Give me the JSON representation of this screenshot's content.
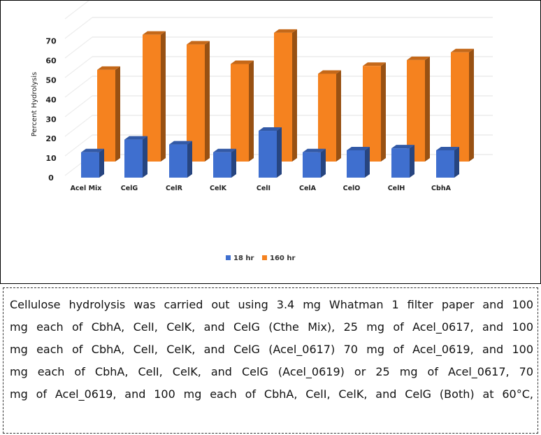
{
  "chart_data": {
    "type": "bar",
    "style": "3d-clustered",
    "ylabel": "Percent Hydrolysis",
    "ylim": [
      0,
      70
    ],
    "yticks": [
      0,
      10,
      20,
      30,
      40,
      50,
      60,
      70
    ],
    "grid": true,
    "legend_position": "bottom",
    "categories": [
      "Acel Mix",
      "CelG",
      "CelR",
      "CelK",
      "CelI",
      "CelA",
      "CelO",
      "CelH",
      "CbhA"
    ],
    "series": [
      {
        "name": "18 hr",
        "color": "#3f6fcf",
        "values": [
          13,
          19.5,
          17,
          13,
          24,
          13,
          14,
          15,
          14
        ]
      },
      {
        "name": "160 hr",
        "color": "#f5821f",
        "values": [
          47,
          65,
          60,
          50,
          66,
          45,
          49,
          52,
          56
        ]
      }
    ]
  },
  "caption": {
    "lines": [
      "Cellulose hydrolysis was carried out using 3.4 mg Whatman 1 filter paper and 100",
      "mg each of CbhA, CelI, CelK, and CelG (Cthe Mix), 25 mg of Acel_0617, and 100",
      "mg each of CbhA, CelI, CelK, and CelG (Acel_0617) 70 mg of Acel_0619, and 100",
      "mg each of CbhA, CelI, CelK, and CelG (Acel_0619) or 25 mg of Acel_0617, 70",
      "mg of Acel_0619, and 100 mg each of CbhA, CelI, CelK, and CelG (Both) at 60°C,"
    ]
  }
}
